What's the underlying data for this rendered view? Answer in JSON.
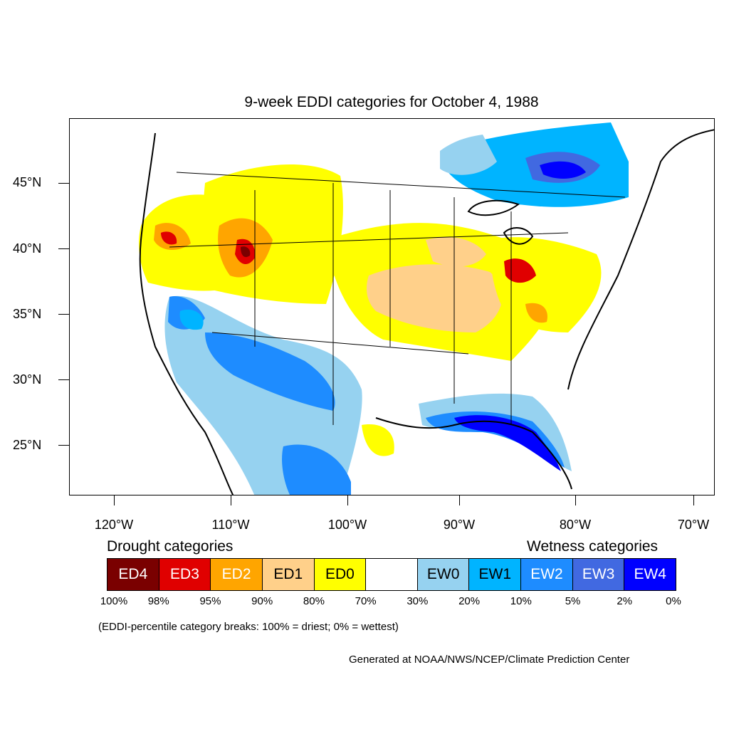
{
  "title": "9-week EDDI categories for October 4, 1988",
  "axes": {
    "lat_labels": [
      "45°N",
      "40°N",
      "35°N",
      "30°N",
      "25°N"
    ],
    "lon_labels": [
      "120°W",
      "110°W",
      "100°W",
      "90°W",
      "80°W",
      "70°W"
    ]
  },
  "legend": {
    "drought_heading": "Drought categories",
    "wetness_heading": "Wetness categories",
    "categories": [
      {
        "label": "ED4",
        "color": "#7a0000",
        "text_color": "#ffffff"
      },
      {
        "label": "ED3",
        "color": "#e00000",
        "text_color": "#ffffff"
      },
      {
        "label": "ED2",
        "color": "#ffa500",
        "text_color": "#ffffff"
      },
      {
        "label": "ED1",
        "color": "#ffd08a",
        "text_color": "#000000"
      },
      {
        "label": "ED0",
        "color": "#ffff00",
        "text_color": "#000000"
      },
      {
        "label": "",
        "color": "#ffffff",
        "text_color": "#000000"
      },
      {
        "label": "EW0",
        "color": "#96d2f0",
        "text_color": "#000000"
      },
      {
        "label": "EW1",
        "color": "#00b4ff",
        "text_color": "#000000"
      },
      {
        "label": "EW2",
        "color": "#1e8cff",
        "text_color": "#ffffff"
      },
      {
        "label": "EW3",
        "color": "#4169e1",
        "text_color": "#ffffff"
      },
      {
        "label": "EW4",
        "color": "#0000ff",
        "text_color": "#ffffff"
      }
    ],
    "breaks": [
      "100%",
      "98%",
      "95%",
      "90%",
      "80%",
      "70%",
      "30%",
      "20%",
      "10%",
      "5%",
      "2%",
      "0%"
    ]
  },
  "note": "(EDDI-percentile category breaks: 100% = driest; 0% = wettest)",
  "credit": "Generated at NOAA/NWS/NCEP/Climate Prediction Center"
}
